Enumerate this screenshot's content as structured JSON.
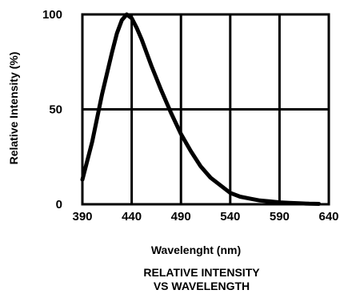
{
  "chart_data": {
    "type": "line",
    "xlabel": "Wavelenght (nm)",
    "ylabel": "Relative Intensity (%)",
    "caption_line1": "RELATIVE INTENSITY",
    "caption_line2": "VS WAVELENGTH",
    "xlim": [
      390,
      640
    ],
    "ylim": [
      0,
      100
    ],
    "x_ticks": [
      390,
      440,
      490,
      540,
      590,
      640
    ],
    "y_ticks": [
      0,
      50,
      100
    ],
    "grid": true,
    "series": [
      {
        "x": [
          390,
          400,
          410,
          420,
          425,
          430,
          435,
          440,
          445,
          450,
          460,
          470,
          480,
          490,
          500,
          510,
          520,
          530,
          540,
          550,
          560,
          570,
          580,
          590,
          600,
          610,
          620,
          630
        ],
        "y": [
          13,
          33,
          58,
          80,
          90,
          97,
          100,
          98,
          93,
          87,
          73,
          60,
          48,
          37,
          28,
          20,
          14,
          10,
          6,
          4,
          3,
          2,
          1.5,
          1,
          0.7,
          0.5,
          0.3,
          0.2
        ]
      }
    ]
  }
}
